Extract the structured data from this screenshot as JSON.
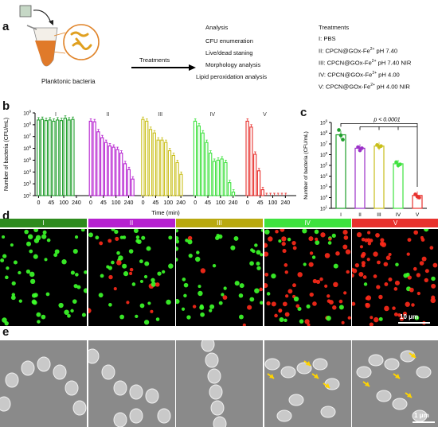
{
  "panels": {
    "a": "a",
    "b": "b",
    "c": "c",
    "d": "d",
    "e": "e"
  },
  "panel_a": {
    "bacteria_label": "Planktonic bacteria",
    "arrow_label": "Treatments",
    "analysis": [
      "Analysis",
      "CFU enumeration",
      "Live/dead staning",
      "Morphology analysis",
      "Lipid peroxidation analysis"
    ],
    "treatments_title": "Treatments",
    "treatments": [
      {
        "num": "I:",
        "name": "PBS",
        "cond": ""
      },
      {
        "num": "II:",
        "name": "CPCN@GOx-Fe",
        "cond": "pH 7.40"
      },
      {
        "num": "III:",
        "name": "CPCN@GOx-Fe",
        "cond": "pH 7.40 NIR"
      },
      {
        "num": "IV:",
        "name": "CPCN@GOx-Fe",
        "cond": "pH 4.00"
      },
      {
        "num": "V:",
        "name": "CPCN@GOx-Fe",
        "cond": "pH 4.00 NIR"
      }
    ],
    "superscript": "2+"
  },
  "chart_data": [
    {
      "type": "bar",
      "ylabel": "Number of bacteria (CFU/mL)",
      "xlabel": "Time (min)",
      "yscale": "log",
      "ylim_exp": [
        2,
        9
      ],
      "xticks": [
        "0",
        "45",
        "100",
        "240"
      ],
      "groups": [
        {
          "name": "I",
          "color": "#1e9e2a",
          "values": [
            8.4,
            8.45,
            8.35,
            8.4,
            8.3,
            8.4,
            8.35,
            8.55,
            8.4,
            8.45
          ]
        },
        {
          "name": "II",
          "color": "#b620d0",
          "values": [
            8.3,
            8.25,
            7.4,
            6.9,
            6.5,
            6.2,
            6.1,
            5.9,
            5.6,
            4.7,
            4.2,
            3.4
          ]
        },
        {
          "name": "III",
          "color": "#c9bf1a",
          "values": [
            8.45,
            8.3,
            7.6,
            7.3,
            6.7,
            6.7,
            6.5,
            5.8,
            5.4,
            4.8,
            3.8
          ]
        },
        {
          "name": "IV",
          "color": "#3ee23e",
          "values": [
            8.3,
            7.9,
            7.3,
            6.5,
            5.6,
            4.9,
            5.0,
            5.1,
            4.8,
            3.1,
            2.3
          ]
        },
        {
          "name": "V",
          "color": "#e8312d",
          "values": [
            8.3,
            7.8,
            5.5,
            4.1,
            2.5,
            2.0,
            2.0,
            2.0,
            2.0,
            2.0,
            2.0
          ]
        }
      ]
    },
    {
      "type": "scatter",
      "ylabel": "Number of bacteria (CFU/mL)",
      "yscale": "log",
      "ylim_exp": [
        1,
        9
      ],
      "categories": [
        "I",
        "II",
        "III",
        "IV",
        "V"
      ],
      "colors": [
        "#1e9e2a",
        "#9b30c8",
        "#c9bf1a",
        "#3ee23e",
        "#e8312d"
      ],
      "values": [
        7.85,
        6.6,
        6.8,
        5.15,
        2.2
      ],
      "points": [
        [
          8.3,
          7.8,
          7.4
        ],
        [
          6.7,
          6.4,
          6.6
        ],
        [
          6.9,
          6.7,
          6.8
        ],
        [
          5.3,
          5.0,
          5.1
        ],
        [
          2.3,
          2.1,
          2.0
        ]
      ],
      "annotation": "p < 0.0001"
    }
  ],
  "panel_d": {
    "headers": [
      {
        "label": "I",
        "color": "#2e8b1e"
      },
      {
        "label": "II",
        "color": "#b620d0"
      },
      {
        "label": "III",
        "color": "#b9a90f"
      },
      {
        "label": "IV",
        "color": "#3ee23e"
      },
      {
        "label": "V",
        "color": "#e8312d"
      }
    ],
    "scale": "10 μm",
    "red_fraction": [
      0.0,
      0.18,
      0.12,
      0.8,
      0.95
    ]
  },
  "panel_e": {
    "scale": "1 μm"
  }
}
